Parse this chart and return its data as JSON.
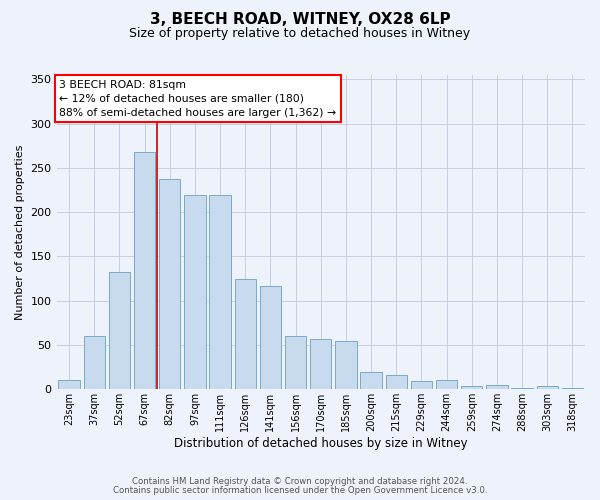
{
  "title": "3, BEECH ROAD, WITNEY, OX28 6LP",
  "subtitle": "Size of property relative to detached houses in Witney",
  "xlabel": "Distribution of detached houses by size in Witney",
  "ylabel": "Number of detached properties",
  "bar_color": "#c8daee",
  "bar_edge_color": "#7aaac8",
  "background_color": "#eef2fa",
  "grid_color": "#c8cce0",
  "annotation_line1": "3 BEECH ROAD: 81sqm",
  "annotation_line2": "← 12% of detached houses are smaller (180)",
  "annotation_line3": "88% of semi-detached houses are larger (1,362) →",
  "vline_index": 4,
  "vline_color": "#cc0000",
  "categories": [
    "23sqm",
    "37sqm",
    "52sqm",
    "67sqm",
    "82sqm",
    "97sqm",
    "111sqm",
    "126sqm",
    "141sqm",
    "156sqm",
    "170sqm",
    "185sqm",
    "200sqm",
    "215sqm",
    "229sqm",
    "244sqm",
    "259sqm",
    "274sqm",
    "288sqm",
    "303sqm",
    "318sqm"
  ],
  "values": [
    10,
    60,
    133,
    268,
    237,
    220,
    220,
    125,
    117,
    60,
    57,
    54,
    20,
    16,
    9,
    10,
    4,
    5,
    2,
    4,
    1
  ],
  "ylim": [
    0,
    355
  ],
  "yticks": [
    0,
    50,
    100,
    150,
    200,
    250,
    300,
    350
  ],
  "footer_line1": "Contains HM Land Registry data © Crown copyright and database right 2024.",
  "footer_line2": "Contains public sector information licensed under the Open Government Licence v3.0."
}
